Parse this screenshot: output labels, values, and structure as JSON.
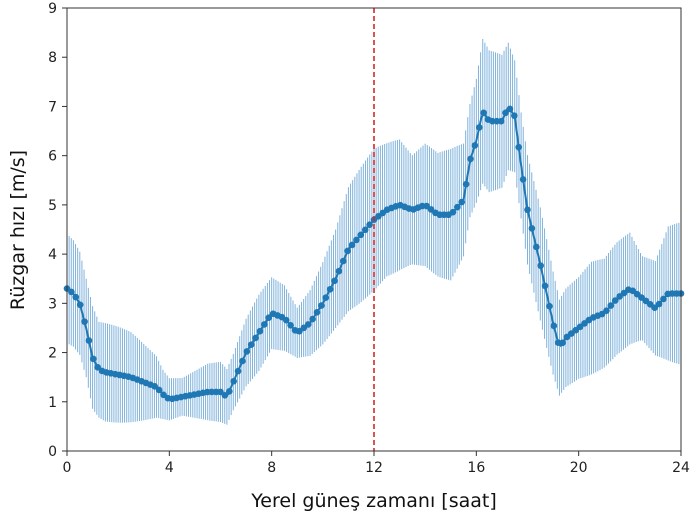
{
  "chart_data": {
    "type": "line",
    "xlabel": "Yerel güneş zamanı [saat]",
    "ylabel": "Rüzgar hızı [m/s]",
    "xlim": [
      0,
      24
    ],
    "ylim": [
      0,
      9
    ],
    "xticks": [
      "0",
      "4",
      "8",
      "12",
      "16",
      "20",
      "24"
    ],
    "yticks": [
      "0",
      "1",
      "2",
      "3",
      "4",
      "5",
      "6",
      "7",
      "8",
      "9"
    ],
    "grid": false,
    "colors": {
      "series": "#1f77b4",
      "errorbar": "#7fb2dc",
      "vline": "#d62728"
    },
    "vline": {
      "x": 12,
      "style": "dashed"
    },
    "series": [
      {
        "x": [
          0,
          0.25,
          0.5,
          0.75,
          1,
          1.25,
          1.5,
          2,
          2.5,
          3,
          3.5,
          3.75,
          4,
          4.5,
          5,
          5.5,
          6,
          6.25,
          6.5,
          7,
          7.5,
          8,
          8.5,
          9,
          9.5,
          10,
          10.5,
          11,
          11.5,
          12,
          12.5,
          13,
          13.5,
          14,
          14.5,
          15,
          15.5,
          15.75,
          16,
          16.25,
          16.5,
          17,
          17.25,
          17.5,
          17.75,
          18,
          18.5,
          19,
          19.25,
          19.5,
          20,
          20.5,
          21,
          21.5,
          22,
          22.5,
          23,
          23.5,
          24
        ],
        "y": [
          3.3,
          3.2,
          3.0,
          2.5,
          1.9,
          1.65,
          1.6,
          1.55,
          1.5,
          1.4,
          1.3,
          1.15,
          1.05,
          1.1,
          1.15,
          1.2,
          1.2,
          1.1,
          1.4,
          2.0,
          2.4,
          2.8,
          2.7,
          2.4,
          2.6,
          3.0,
          3.5,
          4.1,
          4.4,
          4.7,
          4.9,
          5.0,
          4.9,
          5.0,
          4.8,
          4.8,
          5.1,
          5.9,
          6.3,
          6.9,
          6.7,
          6.7,
          7.0,
          6.8,
          5.8,
          4.9,
          3.8,
          2.6,
          2.1,
          2.3,
          2.5,
          2.7,
          2.8,
          3.1,
          3.3,
          3.1,
          2.9,
          3.2,
          3.2
        ],
        "error": [
          1.3,
          1.2,
          1.1,
          1.0,
          1.0,
          0.9,
          0.9,
          0.85,
          0.8,
          0.7,
          0.6,
          0.5,
          0.45,
          0.45,
          0.5,
          0.55,
          0.55,
          0.5,
          0.5,
          0.6,
          0.7,
          0.7,
          0.7,
          0.6,
          0.7,
          0.8,
          0.9,
          1.1,
          1.2,
          1.3,
          1.3,
          1.4,
          1.3,
          1.3,
          1.2,
          1.2,
          1.0,
          1.0,
          1.1,
          1.3,
          1.3,
          1.3,
          1.3,
          1.2,
          1.2,
          1.3,
          1.2,
          1.0,
          0.9,
          0.9,
          0.9,
          1.0,
          1.0,
          1.1,
          1.2,
          1.0,
          1.0,
          1.3,
          1.3
        ]
      }
    ]
  }
}
